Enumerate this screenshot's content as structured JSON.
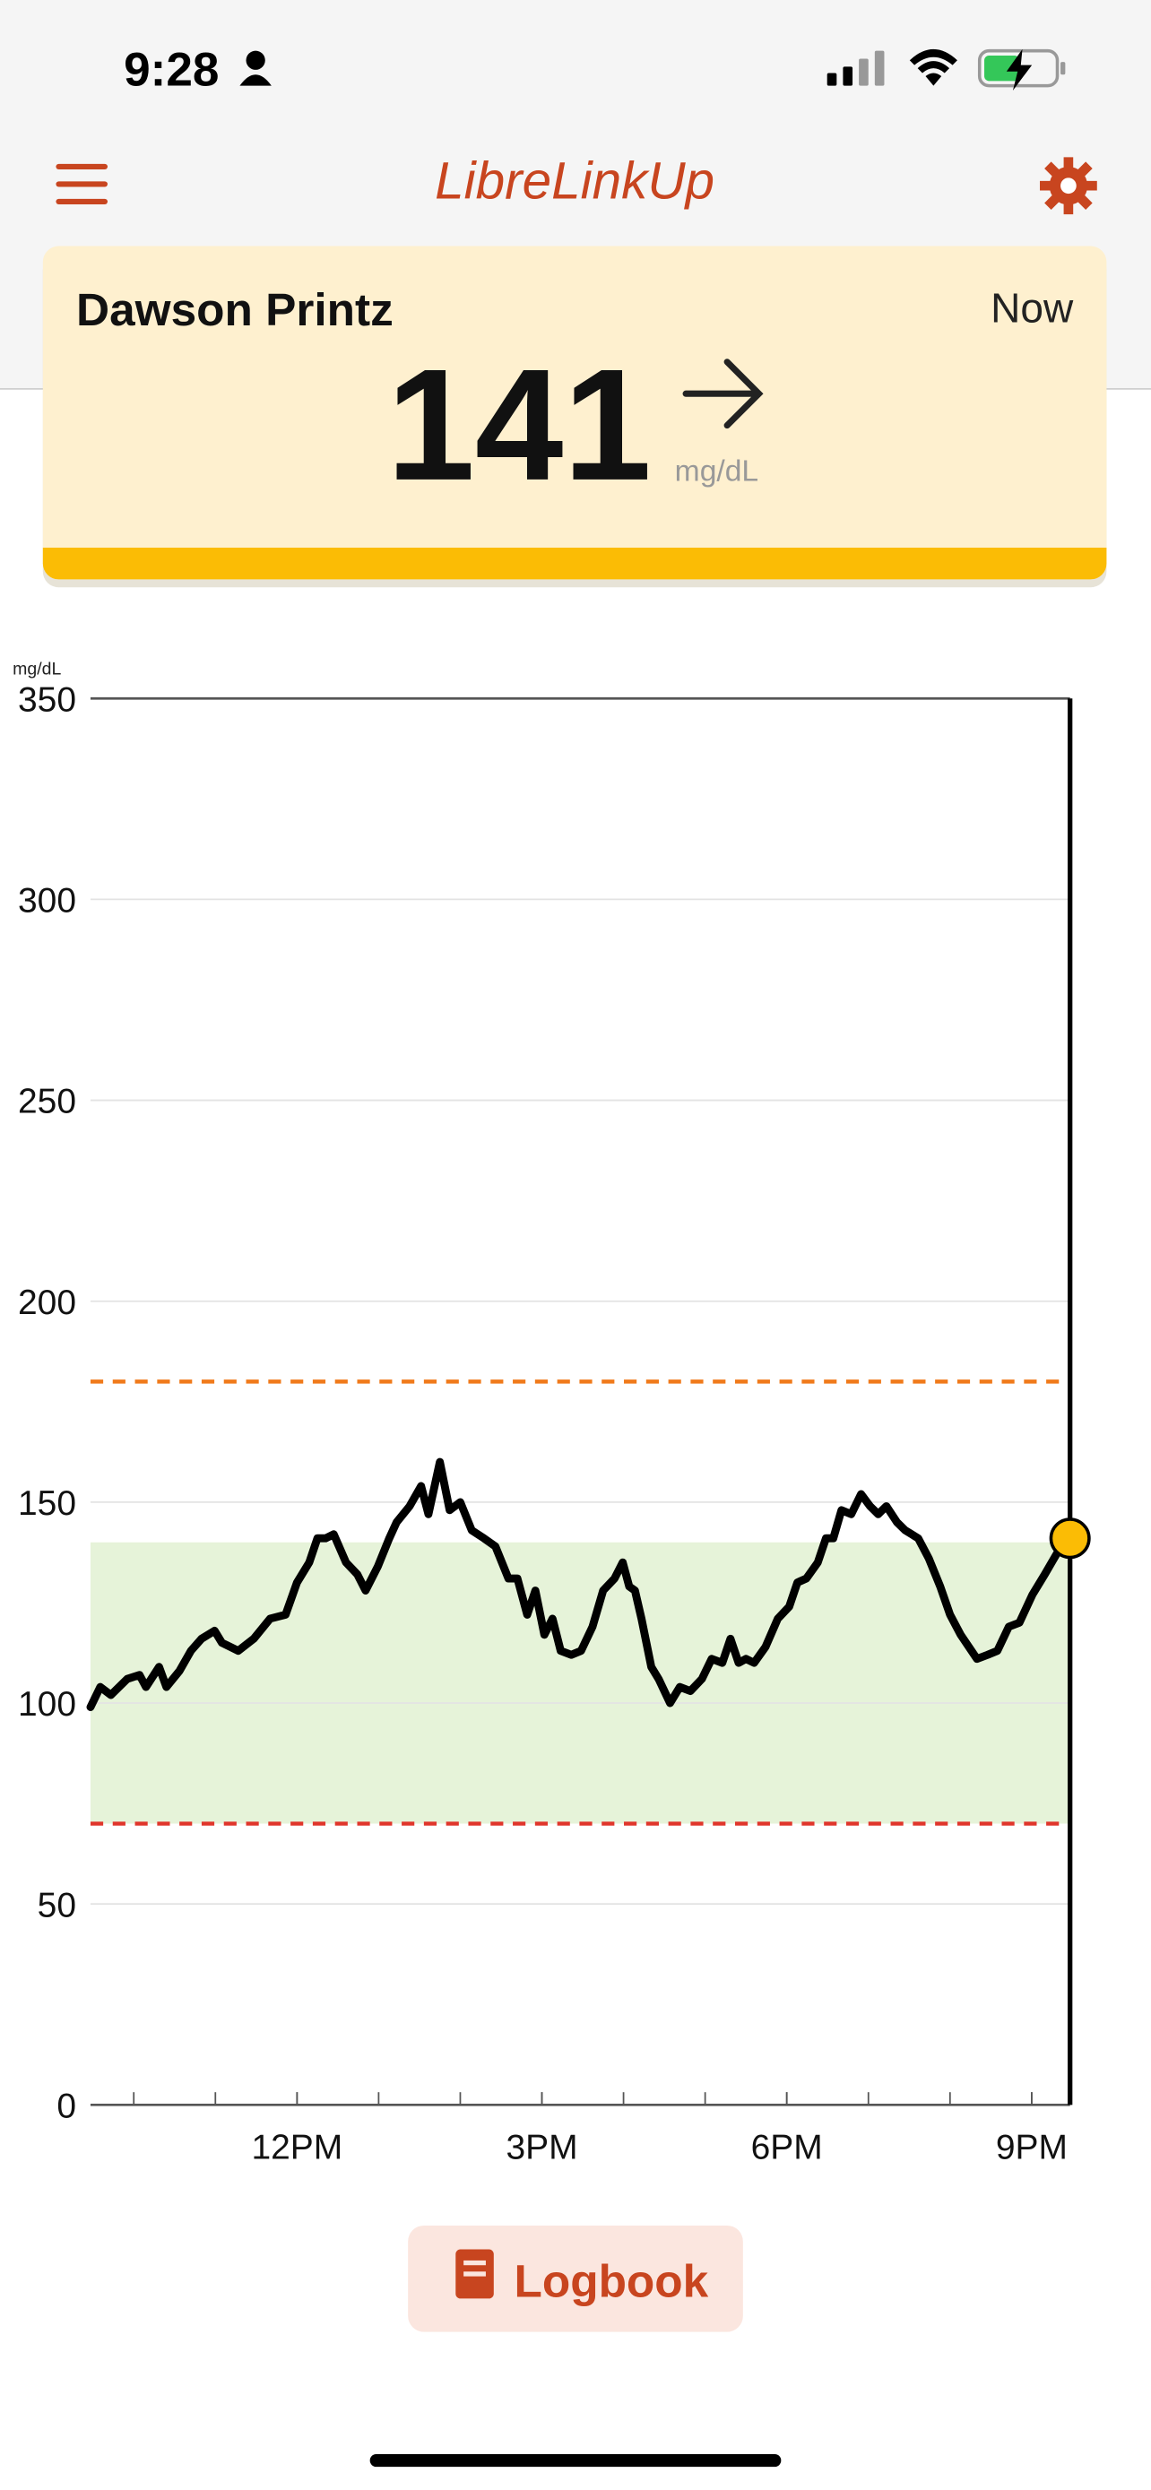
{
  "status_bar": {
    "time": "9:28"
  },
  "header": {
    "title": "LibreLinkUp"
  },
  "reading": {
    "name": "Dawson Printz",
    "time": "Now",
    "value": 141,
    "unit": "mg/dL"
  },
  "chart_data": {
    "type": "line",
    "y_label": "mg/dL",
    "xlim": [
      9.47,
      21.47
    ],
    "ylim": [
      0,
      350
    ],
    "yticks": [
      0,
      50,
      100,
      150,
      200,
      250,
      300,
      350
    ],
    "xticks": [
      {
        "value": 12,
        "label": "12PM"
      },
      {
        "value": 15,
        "label": "3PM"
      },
      {
        "value": 18,
        "label": "6PM"
      },
      {
        "value": 21,
        "label": "9PM"
      }
    ],
    "xminor_ticks": [
      10,
      11,
      12,
      13,
      14,
      15,
      16,
      17,
      18,
      19,
      20,
      21
    ],
    "grid": true,
    "target_range": [
      70,
      140
    ],
    "target_color": "#e6f3d9",
    "high_limit": 180,
    "high_color": "#f07a1a",
    "low_limit": 70,
    "low_color": "#e0352b",
    "current_marker_color": "#fbbc05",
    "series": [
      {
        "color": "#000000",
        "x": [
          9.47,
          9.59,
          9.72,
          9.92,
          10.07,
          10.15,
          10.31,
          10.4,
          10.56,
          10.7,
          10.83,
          10.99,
          11.08,
          11.28,
          11.47,
          11.67,
          11.86,
          12.0,
          12.15,
          12.25,
          12.35,
          12.45,
          12.6,
          12.74,
          12.84,
          12.99,
          13.13,
          13.22,
          13.38,
          13.52,
          13.61,
          13.75,
          13.87,
          14.0,
          14.14,
          14.29,
          14.43,
          14.59,
          14.7,
          14.82,
          14.92,
          15.03,
          15.13,
          15.23,
          15.36,
          15.48,
          15.62,
          15.75,
          15.89,
          15.99,
          16.07,
          16.14,
          16.22,
          16.34,
          16.43,
          16.57,
          16.69,
          16.82,
          16.96,
          17.08,
          17.21,
          17.31,
          17.41,
          17.5,
          17.6,
          17.74,
          17.89,
          18.03,
          18.13,
          18.24,
          18.38,
          18.48,
          18.57,
          18.67,
          18.79,
          18.91,
          19.02,
          19.12,
          19.22,
          19.35,
          19.45,
          19.61,
          19.74,
          19.88,
          20.0,
          20.13,
          20.33,
          20.46,
          20.58,
          20.72,
          20.85,
          21.01,
          21.16,
          21.36,
          21.47
        ],
        "values": [
          99,
          104,
          102,
          106,
          107,
          104,
          109,
          104,
          108,
          113,
          116,
          118,
          115,
          113,
          116,
          121,
          122,
          130,
          135,
          141,
          141,
          142,
          135,
          132,
          128,
          134,
          141,
          145,
          149,
          154,
          147,
          160,
          148,
          150,
          143,
          141,
          139,
          131,
          131,
          122,
          128,
          117,
          121,
          113,
          112,
          113,
          119,
          128,
          131,
          135,
          129,
          128,
          121,
          109,
          106,
          100,
          104,
          103,
          106,
          111,
          110,
          116,
          110,
          111,
          110,
          114,
          121,
          124,
          130,
          131,
          135,
          141,
          141,
          148,
          147,
          152,
          149,
          147,
          149,
          145,
          143,
          141,
          136,
          129,
          122,
          117,
          111,
          112,
          113,
          119,
          120,
          127,
          132,
          139,
          141
        ]
      }
    ]
  },
  "button": {
    "label": "Logbook"
  }
}
